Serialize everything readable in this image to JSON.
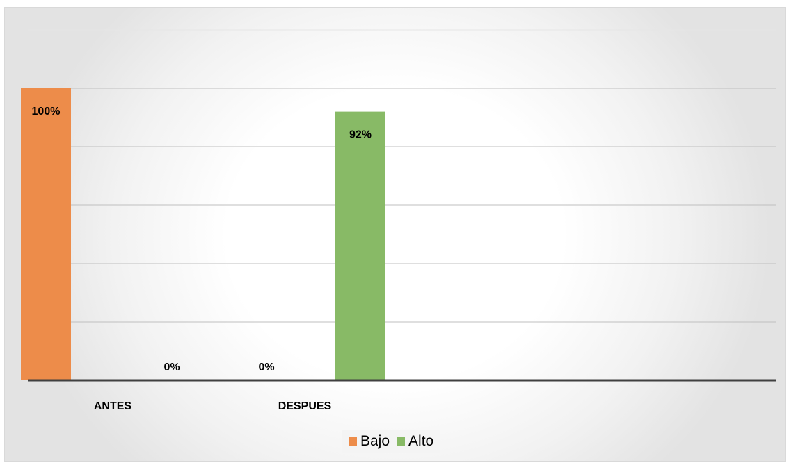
{
  "chart_data": {
    "type": "bar",
    "categories": [
      "ANTES",
      "DESPUES"
    ],
    "series": [
      {
        "name": "Bajo",
        "values": [
          100,
          0
        ],
        "labels": [
          "100%",
          "0%"
        ],
        "color": "#ED8C4A"
      },
      {
        "name": "Alto",
        "values": [
          0,
          92
        ],
        "labels": [
          "0%",
          "92%"
        ],
        "color": "#88BA66"
      }
    ],
    "ylim": [
      0,
      100
    ],
    "y_gridlines": [
      20,
      40,
      60,
      80,
      100,
      120
    ],
    "grid": true,
    "legend_position": "bottom",
    "title": "",
    "xlabel": "",
    "ylabel": ""
  }
}
